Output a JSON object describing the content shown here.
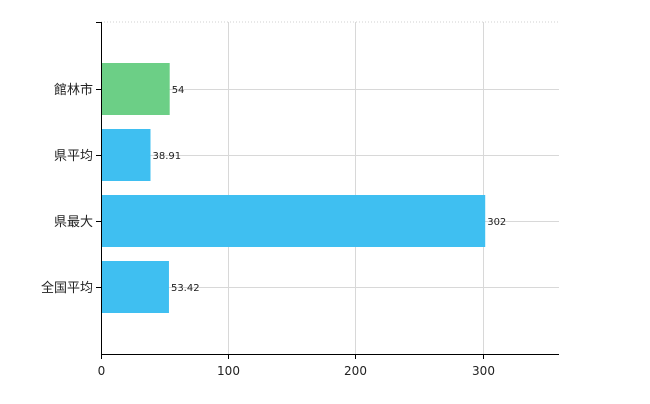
{
  "chart_data": {
    "type": "bar",
    "orientation": "horizontal",
    "categories": [
      "館林市",
      "県平均",
      "県最大",
      "全国平均"
    ],
    "values": [
      54,
      38.91,
      302,
      53.42
    ],
    "value_labels": [
      "54",
      "38.91",
      "302",
      "53.42"
    ],
    "bar_colors": [
      "#6ccf86",
      "#3fbff1",
      "#3fbff1",
      "#3fbff1"
    ],
    "xlim": [
      0,
      360
    ],
    "x_ticks": [
      0,
      100,
      200,
      300
    ],
    "grid": true,
    "legend": "none"
  }
}
